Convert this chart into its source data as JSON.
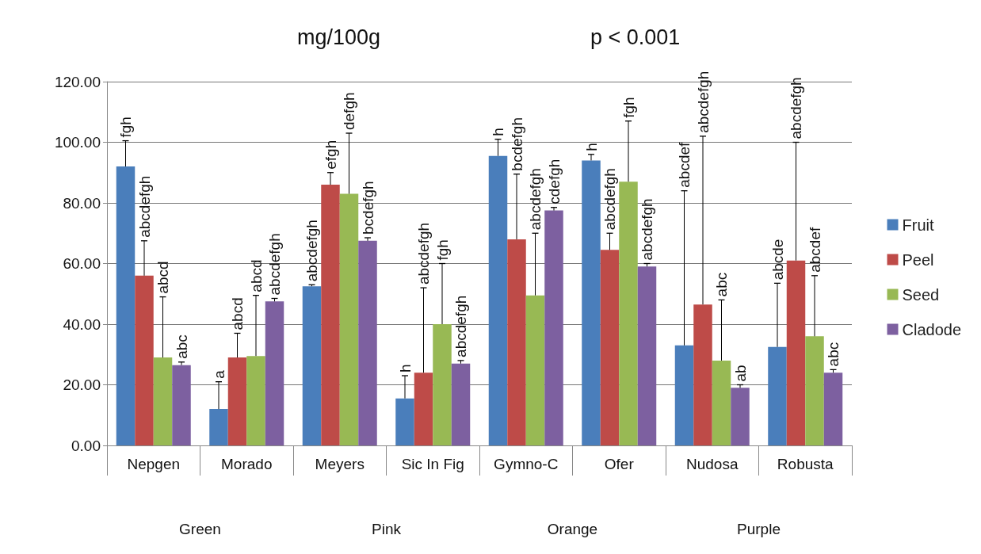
{
  "chart_data": {
    "type": "bar",
    "title": "mg/100g",
    "subtitle": "p < 0.001",
    "categories": [
      "Nepgen",
      "Morado",
      "Meyers",
      "Sic In Fig",
      "Gymno-C",
      "Ofer",
      "Nudosa",
      "Robusta"
    ],
    "series": [
      {
        "name": "Fruit",
        "color": "#4a7ebb",
        "values": [
          92,
          12,
          52.5,
          15.5,
          95.5,
          94,
          33,
          32.5
        ],
        "errors": [
          8.5,
          9,
          0.5,
          7.5,
          5.5,
          2,
          51,
          21
        ]
      },
      {
        "name": "Peel",
        "color": "#be4b48",
        "values": [
          56,
          29,
          86,
          24,
          68,
          64.5,
          46.5,
          61
        ],
        "errors": [
          11.5,
          8,
          4,
          28,
          21.5,
          5.5,
          55.5,
          39
        ]
      },
      {
        "name": "Seed",
        "color": "#98b954",
        "values": [
          29,
          29.5,
          83,
          40,
          49.5,
          87,
          28,
          36
        ],
        "errors": [
          20,
          20,
          20,
          20,
          20.5,
          20,
          20,
          20
        ]
      },
      {
        "name": "Cladode",
        "color": "#7d60a0",
        "values": [
          26.5,
          47.5,
          67.5,
          27,
          77.5,
          59,
          19,
          24
        ],
        "errors": [
          1,
          1,
          1,
          1,
          1,
          1,
          1,
          1
        ]
      }
    ],
    "ylim": [
      0,
      120
    ],
    "yticks": [
      {
        "value": 0,
        "label": "0.00"
      },
      {
        "value": 20,
        "label": "20.00"
      },
      {
        "value": 40,
        "label": "40.00"
      },
      {
        "value": 60,
        "label": "60.00"
      },
      {
        "value": 80,
        "label": "80.00"
      },
      {
        "value": 100,
        "label": "100.00"
      },
      {
        "value": 120,
        "label": "120.00"
      }
    ],
    "grid": "y",
    "legend": "right",
    "annotations": [
      "fgh",
      "abcdefgh",
      "abcd",
      "abc",
      "a",
      "abcd",
      "abcd",
      "abcdefgh",
      "abcdefgh",
      "efgh",
      "defgh",
      "bcdefgh",
      "h",
      "abcdefgh",
      "fgh",
      "abcdefgh",
      "h",
      "bcdefgh",
      "abcdefgh",
      "cdefgh",
      "h",
      "abcdefgh",
      "fgh",
      "abcdefgh",
      "abcdef",
      "abcdefgh",
      "abc",
      "ab",
      "abcde",
      "abcdefgh",
      "abcdef",
      "abc",
      "Green",
      "Pink",
      "Orange",
      "Purple"
    ]
  }
}
